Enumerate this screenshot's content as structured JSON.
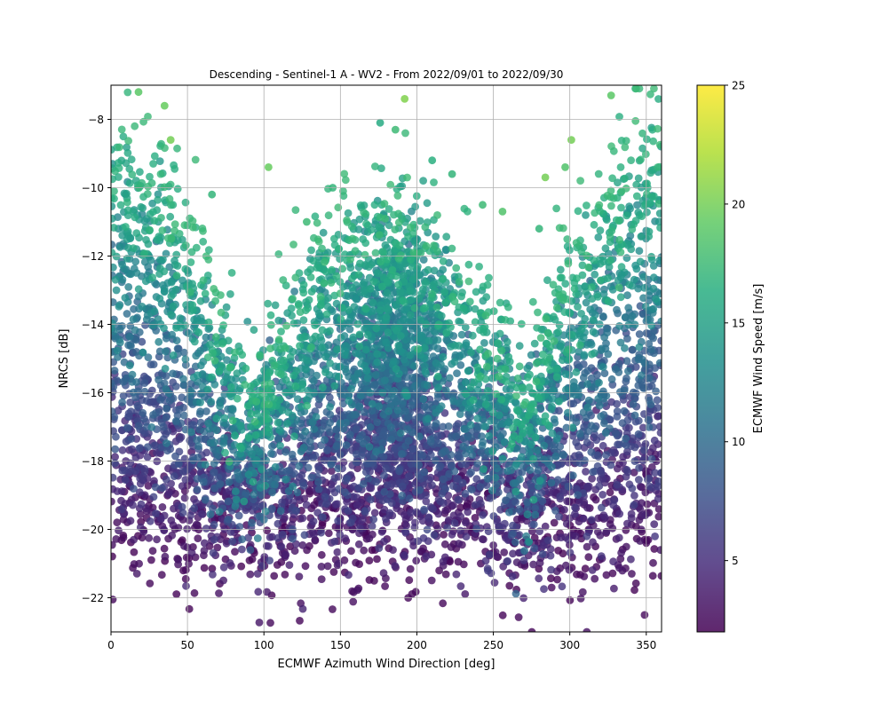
{
  "chart_data": {
    "type": "scatter",
    "title": "Descending - Sentinel-1 A - WV2 - From 2022/09/01 to 2022/09/30",
    "xlabel": "ECMWF Azimuth Wind Direction [deg]",
    "ylabel": "NRCS [dB]",
    "xlim": [
      0,
      360
    ],
    "ylim": [
      -23,
      -7
    ],
    "xticks": [
      0,
      50,
      100,
      150,
      200,
      250,
      300,
      350
    ],
    "yticks": [
      -22,
      -20,
      -18,
      -16,
      -14,
      -12,
      -10,
      -8
    ],
    "grid": true,
    "colorbar": {
      "label": "ECMWF Wind Speed [m/s]",
      "range": [
        2,
        25
      ],
      "ticks": [
        5,
        10,
        15,
        20,
        25
      ],
      "colormap": "viridis"
    },
    "points": [
      {
        "x": 192,
        "y": -7.4,
        "speed": 20.5
      },
      {
        "x": 103,
        "y": -9.4,
        "speed": 19.5
      },
      {
        "x": 284,
        "y": -9.7,
        "speed": 20.0
      },
      {
        "x": 256,
        "y": -10.7,
        "speed": 18.5
      },
      {
        "x": 35,
        "y": -7.6,
        "speed": 19.5
      },
      {
        "x": 39,
        "y": -8.6,
        "speed": 20.0
      },
      {
        "x": 301,
        "y": -8.6,
        "speed": 20.0
      },
      {
        "x": 327,
        "y": -7.3,
        "speed": 19.0
      },
      {
        "x": 18,
        "y": -7.2,
        "speed": 19.0
      },
      {
        "x": 186,
        "y": -8.3,
        "speed": 17.5
      },
      {
        "x": 176,
        "y": -8.1,
        "speed": 16.0
      },
      {
        "x": 210,
        "y": -9.2,
        "speed": 16.5
      },
      {
        "x": 223,
        "y": -9.6,
        "speed": 17.0
      },
      {
        "x": 243,
        "y": -10.5,
        "speed": 17.5
      },
      {
        "x": 66,
        "y": -10.2,
        "speed": 17.0
      },
      {
        "x": 297,
        "y": -9.4,
        "speed": 18.5
      },
      {
        "x": 280,
        "y": -11.2,
        "speed": 17.0
      },
      {
        "x": 128,
        "y": -11.0,
        "speed": 17.5
      },
      {
        "x": 145,
        "y": -10.0,
        "speed": 17.0
      }
    ]
  }
}
